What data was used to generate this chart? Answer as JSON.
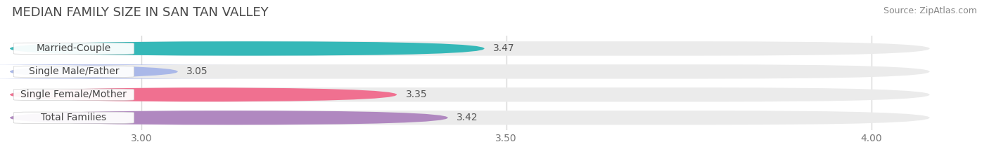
{
  "title": "MEDIAN FAMILY SIZE IN SAN TAN VALLEY",
  "source": "Source: ZipAtlas.com",
  "categories": [
    "Married-Couple",
    "Single Male/Father",
    "Single Female/Mother",
    "Total Families"
  ],
  "values": [
    3.47,
    3.05,
    3.35,
    3.42
  ],
  "bar_colors": [
    "#35b8b8",
    "#aab8e8",
    "#f07090",
    "#b088c0"
  ],
  "xlim_left": 2.82,
  "xlim_right": 4.08,
  "xticks": [
    3.0,
    3.5,
    4.0
  ],
  "xtick_labels": [
    "3.00",
    "3.50",
    "4.00"
  ],
  "bar_height": 0.62,
  "bar_gap": 0.38,
  "background_color": "#ffffff",
  "bar_bg_color": "#ebebeb",
  "grid_color": "#d8d8d8",
  "title_fontsize": 13,
  "source_fontsize": 9,
  "label_fontsize": 10,
  "value_fontsize": 10,
  "tick_fontsize": 10,
  "title_color": "#4a4a4a",
  "source_color": "#888888",
  "label_text_color": "#444444",
  "value_text_color": "#555555"
}
